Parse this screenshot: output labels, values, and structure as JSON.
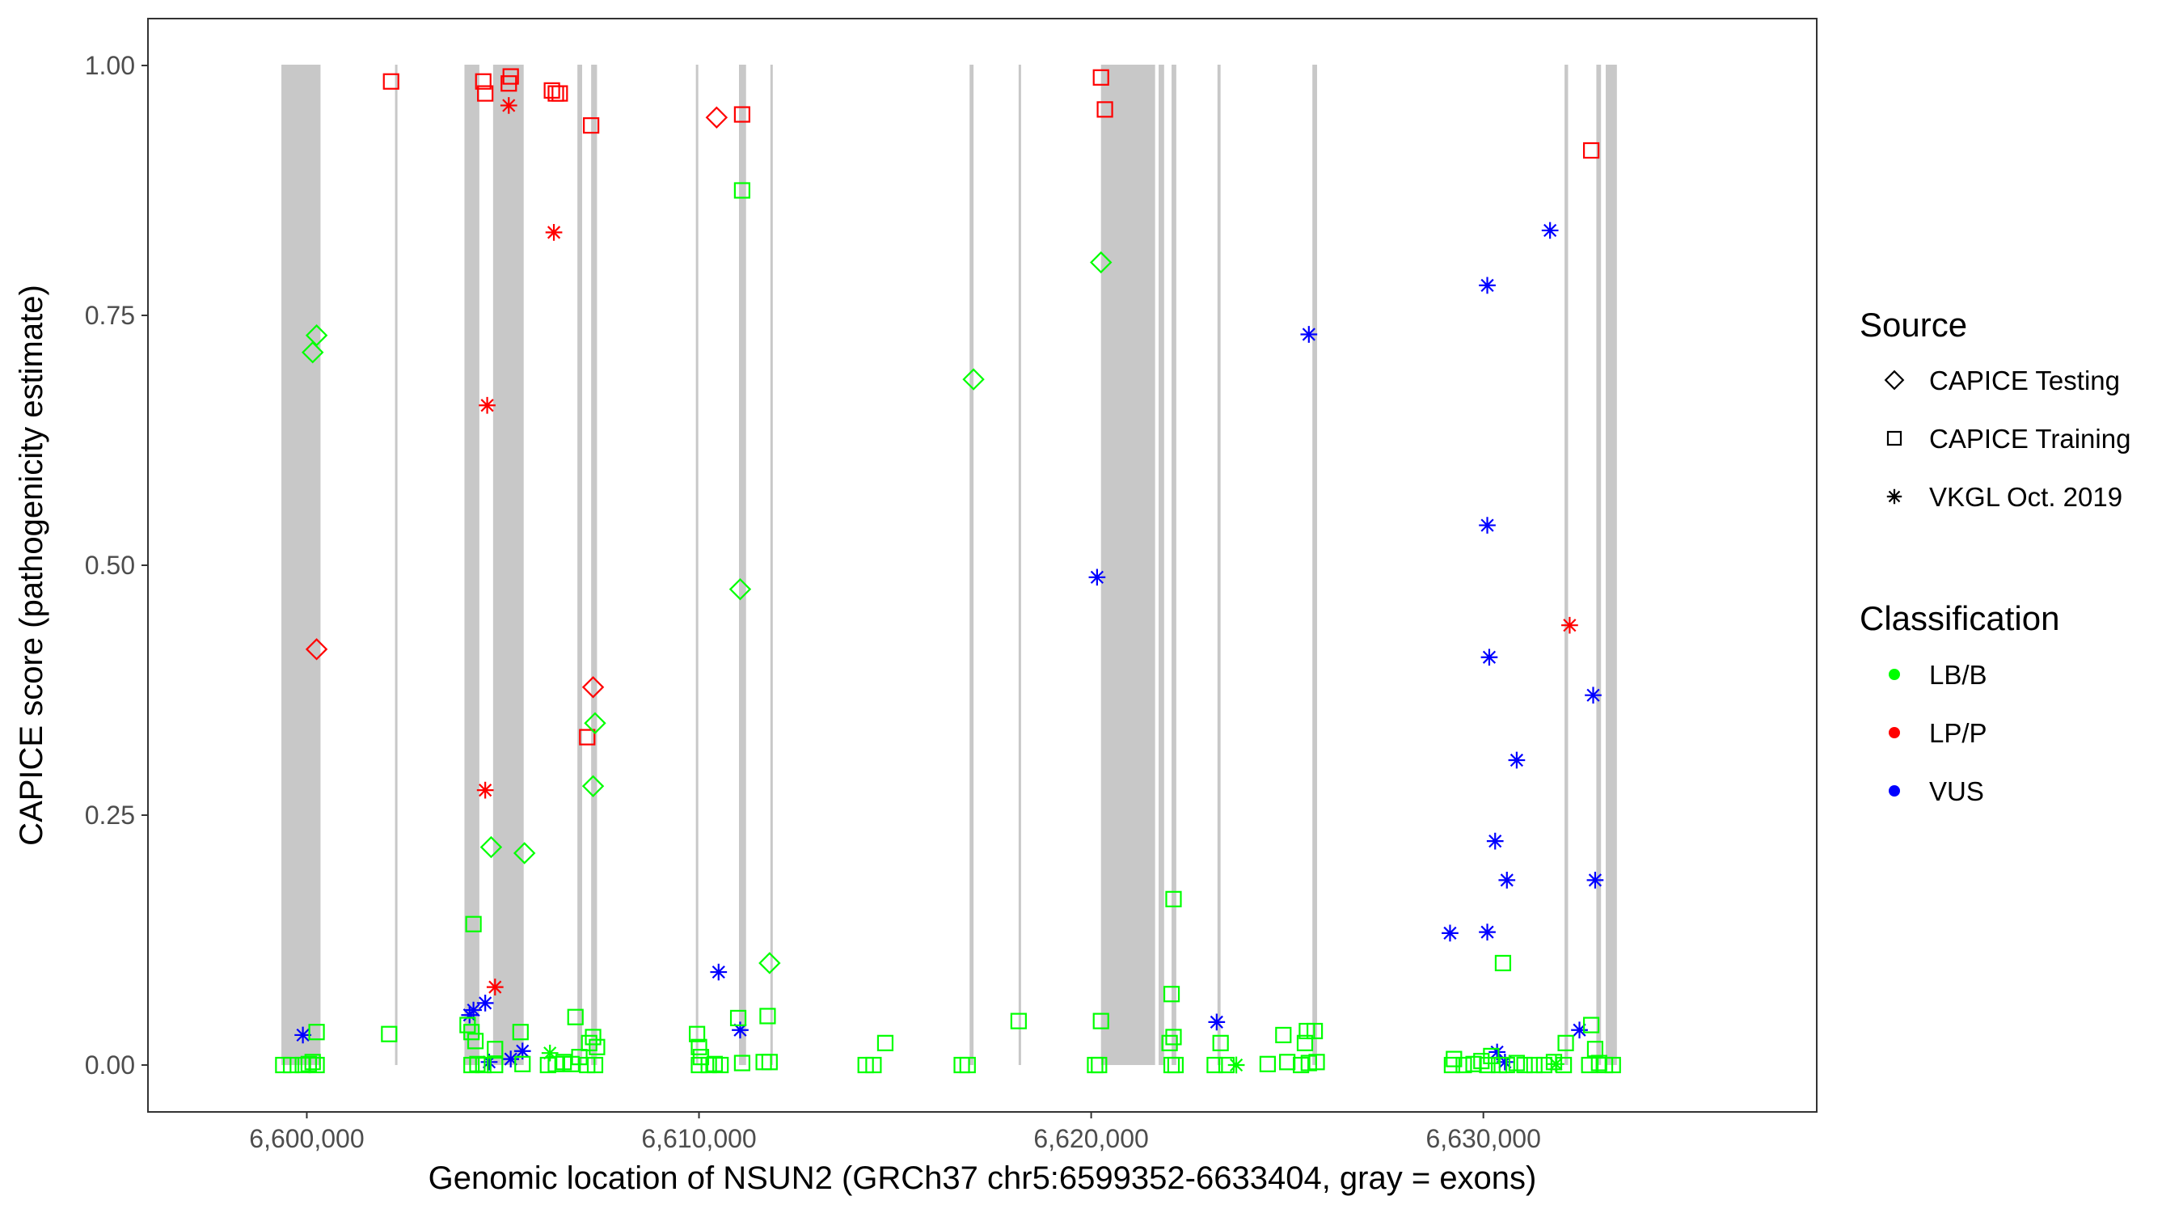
{
  "chart_data": {
    "type": "scatter",
    "xlabel": "Genomic location of NSUN2 (GRCh37 chr5:6599352-6633404, gray = exons)",
    "ylabel": "CAPICE score (pathogenicity estimate)",
    "xlim": [
      6595950,
      6638500
    ],
    "ylim": [
      -0.0469,
      1.0469
    ],
    "x_ticks": [
      6600000,
      6610000,
      6620000,
      6630000
    ],
    "x_tick_labels": [
      "6,600,000",
      "6,610,000",
      "6,620,000",
      "6,630,000"
    ],
    "y_ticks": [
      0,
      0.25,
      0.5,
      0.75,
      1
    ],
    "y_tick_labels": [
      "0.00",
      "0.25",
      "0.50",
      "0.75",
      "1.00"
    ],
    "grid": false,
    "exons": [
      [
        6599352,
        6600350
      ],
      [
        6602250,
        6602280
      ],
      [
        6604020,
        6604400
      ],
      [
        6604750,
        6605530
      ],
      [
        6606900,
        6607020
      ],
      [
        6607250,
        6607400
      ],
      [
        6609920,
        6609980
      ],
      [
        6611020,
        6611200
      ],
      [
        6611820,
        6611880
      ],
      [
        6616900,
        6617000
      ],
      [
        6618150,
        6618180
      ],
      [
        6620250,
        6621630
      ],
      [
        6621720,
        6621860
      ],
      [
        6622050,
        6622170
      ],
      [
        6623220,
        6623300
      ],
      [
        6625640,
        6625760
      ],
      [
        6632070,
        6632160
      ],
      [
        6632880,
        6633000
      ],
      [
        6633120,
        6633404
      ]
    ],
    "legend": {
      "position": "right",
      "source_title": "Source",
      "source_entries": [
        {
          "label": "CAPICE Testing",
          "shape": "diamond"
        },
        {
          "label": "CAPICE Training",
          "shape": "square"
        },
        {
          "label": "VKGL Oct. 2019",
          "shape": "asterisk"
        }
      ],
      "class_title": "Classification",
      "class_entries": [
        {
          "label": "LB/B",
          "color": "#00ff00"
        },
        {
          "label": "LP/P",
          "color": "#ff0000"
        },
        {
          "label": "VUS",
          "color": "#0000ff"
        }
      ]
    },
    "series": [
      {
        "name": "LP/P",
        "color": "#ff0000",
        "points": [
          {
            "x": 6602150,
            "y": 0.984,
            "shape": "square"
          },
          {
            "x": 6604500,
            "y": 0.984,
            "shape": "square"
          },
          {
            "x": 6604550,
            "y": 0.972,
            "shape": "square"
          },
          {
            "x": 6605150,
            "y": 0.982,
            "shape": "square"
          },
          {
            "x": 6605200,
            "y": 0.989,
            "shape": "square"
          },
          {
            "x": 6605150,
            "y": 0.96,
            "shape": "asterisk"
          },
          {
            "x": 6606250,
            "y": 0.975,
            "shape": "square"
          },
          {
            "x": 6606350,
            "y": 0.972,
            "shape": "square"
          },
          {
            "x": 6606450,
            "y": 0.972,
            "shape": "square"
          },
          {
            "x": 6607250,
            "y": 0.94,
            "shape": "square"
          },
          {
            "x": 6606300,
            "y": 0.833,
            "shape": "asterisk"
          },
          {
            "x": 6604600,
            "y": 0.66,
            "shape": "asterisk"
          },
          {
            "x": 6604550,
            "y": 0.275,
            "shape": "asterisk"
          },
          {
            "x": 6604800,
            "y": 0.078,
            "shape": "asterisk"
          },
          {
            "x": 6600250,
            "y": 0.416,
            "shape": "diamond"
          },
          {
            "x": 6607300,
            "y": 0.378,
            "shape": "diamond"
          },
          {
            "x": 6607150,
            "y": 0.328,
            "shape": "square"
          },
          {
            "x": 6610450,
            "y": 0.948,
            "shape": "diamond"
          },
          {
            "x": 6611100,
            "y": 0.951,
            "shape": "square"
          },
          {
            "x": 6620250,
            "y": 0.988,
            "shape": "square"
          },
          {
            "x": 6620350,
            "y": 0.956,
            "shape": "square"
          },
          {
            "x": 6632750,
            "y": 0.915,
            "shape": "square"
          },
          {
            "x": 6632200,
            "y": 0.44,
            "shape": "asterisk"
          }
        ]
      },
      {
        "name": "VUS",
        "color": "#0000ff",
        "points": [
          {
            "x": 6599900,
            "y": 0.03,
            "shape": "asterisk"
          },
          {
            "x": 6604150,
            "y": 0.05,
            "shape": "asterisk"
          },
          {
            "x": 6604250,
            "y": 0.055,
            "shape": "asterisk"
          },
          {
            "x": 6604550,
            "y": 0.062,
            "shape": "asterisk"
          },
          {
            "x": 6604650,
            "y": 0.003,
            "shape": "asterisk"
          },
          {
            "x": 6605200,
            "y": 0.006,
            "shape": "asterisk"
          },
          {
            "x": 6605500,
            "y": 0.014,
            "shape": "asterisk"
          },
          {
            "x": 6610500,
            "y": 0.093,
            "shape": "asterisk"
          },
          {
            "x": 6611050,
            "y": 0.035,
            "shape": "asterisk"
          },
          {
            "x": 6620150,
            "y": 0.488,
            "shape": "asterisk"
          },
          {
            "x": 6623200,
            "y": 0.043,
            "shape": "asterisk"
          },
          {
            "x": 6625550,
            "y": 0.731,
            "shape": "asterisk"
          },
          {
            "x": 6629150,
            "y": 0.132,
            "shape": "asterisk"
          },
          {
            "x": 6630100,
            "y": 0.78,
            "shape": "asterisk"
          },
          {
            "x": 6630100,
            "y": 0.54,
            "shape": "asterisk"
          },
          {
            "x": 6630150,
            "y": 0.408,
            "shape": "asterisk"
          },
          {
            "x": 6630100,
            "y": 0.133,
            "shape": "asterisk"
          },
          {
            "x": 6630300,
            "y": 0.224,
            "shape": "asterisk"
          },
          {
            "x": 6630350,
            "y": 0.013,
            "shape": "asterisk"
          },
          {
            "x": 6630550,
            "y": 0.003,
            "shape": "asterisk"
          },
          {
            "x": 6630600,
            "y": 0.185,
            "shape": "asterisk"
          },
          {
            "x": 6630850,
            "y": 0.305,
            "shape": "asterisk"
          },
          {
            "x": 6631700,
            "y": 0.835,
            "shape": "asterisk"
          },
          {
            "x": 6632450,
            "y": 0.035,
            "shape": "asterisk"
          },
          {
            "x": 6632800,
            "y": 0.37,
            "shape": "asterisk"
          },
          {
            "x": 6632850,
            "y": 0.185,
            "shape": "asterisk"
          }
        ]
      },
      {
        "name": "LB/B",
        "color": "#00ff00",
        "points": [
          {
            "x": 6600150,
            "y": 0.713,
            "shape": "diamond"
          },
          {
            "x": 6600250,
            "y": 0.73,
            "shape": "diamond"
          },
          {
            "x": 6600250,
            "y": 0.033,
            "shape": "square"
          },
          {
            "x": 6599400,
            "y": 0.0,
            "shape": "square"
          },
          {
            "x": 6599600,
            "y": 0.0,
            "shape": "square"
          },
          {
            "x": 6599900,
            "y": 0.0,
            "shape": "square"
          },
          {
            "x": 6600050,
            "y": 0.001,
            "shape": "square"
          },
          {
            "x": 6600150,
            "y": 0.003,
            "shape": "square"
          },
          {
            "x": 6600250,
            "y": 0.0,
            "shape": "square"
          },
          {
            "x": 6602100,
            "y": 0.031,
            "shape": "square"
          },
          {
            "x": 6604250,
            "y": 0.141,
            "shape": "square"
          },
          {
            "x": 6604100,
            "y": 0.04,
            "shape": "square"
          },
          {
            "x": 6604200,
            "y": 0.033,
            "shape": "square"
          },
          {
            "x": 6604300,
            "y": 0.024,
            "shape": "square"
          },
          {
            "x": 6604700,
            "y": 0.218,
            "shape": "diamond"
          },
          {
            "x": 6605550,
            "y": 0.212,
            "shape": "diamond"
          },
          {
            "x": 6605450,
            "y": 0.033,
            "shape": "square"
          },
          {
            "x": 6604800,
            "y": 0.016,
            "shape": "square"
          },
          {
            "x": 6604200,
            "y": 0.0,
            "shape": "square"
          },
          {
            "x": 6604350,
            "y": 0.001,
            "shape": "square"
          },
          {
            "x": 6604500,
            "y": 0.0,
            "shape": "square"
          },
          {
            "x": 6604800,
            "y": 0.0,
            "shape": "square"
          },
          {
            "x": 6605500,
            "y": 0.001,
            "shape": "square"
          },
          {
            "x": 6606200,
            "y": 0.012,
            "shape": "asterisk"
          },
          {
            "x": 6606150,
            "y": 0.0,
            "shape": "square"
          },
          {
            "x": 6606350,
            "y": 0.001,
            "shape": "square"
          },
          {
            "x": 6606550,
            "y": 0.003,
            "shape": "square"
          },
          {
            "x": 6606750,
            "y": 0.001,
            "shape": "square"
          },
          {
            "x": 6606950,
            "y": 0.008,
            "shape": "square"
          },
          {
            "x": 6606850,
            "y": 0.048,
            "shape": "square"
          },
          {
            "x": 6607200,
            "y": 0.022,
            "shape": "square"
          },
          {
            "x": 6607300,
            "y": 0.028,
            "shape": "square"
          },
          {
            "x": 6607400,
            "y": 0.018,
            "shape": "square"
          },
          {
            "x": 6607150,
            "y": 0.0,
            "shape": "square"
          },
          {
            "x": 6607350,
            "y": 0.0,
            "shape": "square"
          },
          {
            "x": 6607350,
            "y": 0.342,
            "shape": "diamond"
          },
          {
            "x": 6607300,
            "y": 0.279,
            "shape": "diamond"
          },
          {
            "x": 6611100,
            "y": 0.875,
            "shape": "square"
          },
          {
            "x": 6611050,
            "y": 0.476,
            "shape": "diamond"
          },
          {
            "x": 6611800,
            "y": 0.102,
            "shape": "diamond"
          },
          {
            "x": 6609950,
            "y": 0.031,
            "shape": "square"
          },
          {
            "x": 6610000,
            "y": 0.018,
            "shape": "square"
          },
          {
            "x": 6610050,
            "y": 0.008,
            "shape": "square"
          },
          {
            "x": 6610000,
            "y": 0.0,
            "shape": "square"
          },
          {
            "x": 6610250,
            "y": 0.0,
            "shape": "square"
          },
          {
            "x": 6610400,
            "y": 0.001,
            "shape": "square"
          },
          {
            "x": 6610550,
            "y": 0.0,
            "shape": "square"
          },
          {
            "x": 6611000,
            "y": 0.047,
            "shape": "square"
          },
          {
            "x": 6611100,
            "y": 0.002,
            "shape": "square"
          },
          {
            "x": 6611750,
            "y": 0.049,
            "shape": "square"
          },
          {
            "x": 6611650,
            "y": 0.003,
            "shape": "square"
          },
          {
            "x": 6611800,
            "y": 0.003,
            "shape": "square"
          },
          {
            "x": 6614250,
            "y": 0.0,
            "shape": "square"
          },
          {
            "x": 6614450,
            "y": 0.0,
            "shape": "square"
          },
          {
            "x": 6614750,
            "y": 0.022,
            "shape": "square"
          },
          {
            "x": 6616700,
            "y": 0.0,
            "shape": "square"
          },
          {
            "x": 6616850,
            "y": 0.0,
            "shape": "square"
          },
          {
            "x": 6617000,
            "y": 0.686,
            "shape": "diamond"
          },
          {
            "x": 6618150,
            "y": 0.044,
            "shape": "square"
          },
          {
            "x": 6620250,
            "y": 0.803,
            "shape": "diamond"
          },
          {
            "x": 6620250,
            "y": 0.044,
            "shape": "square"
          },
          {
            "x": 6620100,
            "y": 0.0,
            "shape": "square"
          },
          {
            "x": 6620200,
            "y": 0.0,
            "shape": "square"
          },
          {
            "x": 6622100,
            "y": 0.166,
            "shape": "square"
          },
          {
            "x": 6622050,
            "y": 0.071,
            "shape": "square"
          },
          {
            "x": 6622100,
            "y": 0.028,
            "shape": "square"
          },
          {
            "x": 6622000,
            "y": 0.022,
            "shape": "square"
          },
          {
            "x": 6622050,
            "y": 0.0,
            "shape": "square"
          },
          {
            "x": 6622150,
            "y": 0.0,
            "shape": "square"
          },
          {
            "x": 6623300,
            "y": 0.022,
            "shape": "square"
          },
          {
            "x": 6623150,
            "y": 0.0,
            "shape": "square"
          },
          {
            "x": 6623450,
            "y": 0.0,
            "shape": "square"
          },
          {
            "x": 6623700,
            "y": 0.0,
            "shape": "asterisk"
          },
          {
            "x": 6624500,
            "y": 0.001,
            "shape": "square"
          },
          {
            "x": 6624900,
            "y": 0.03,
            "shape": "square"
          },
          {
            "x": 6625000,
            "y": 0.003,
            "shape": "square"
          },
          {
            "x": 6625450,
            "y": 0.022,
            "shape": "square"
          },
          {
            "x": 6625500,
            "y": 0.034,
            "shape": "square"
          },
          {
            "x": 6625700,
            "y": 0.034,
            "shape": "square"
          },
          {
            "x": 6625350,
            "y": 0.0,
            "shape": "square"
          },
          {
            "x": 6625550,
            "y": 0.002,
            "shape": "square"
          },
          {
            "x": 6625750,
            "y": 0.003,
            "shape": "square"
          },
          {
            "x": 6629200,
            "y": 0.0,
            "shape": "square"
          },
          {
            "x": 6629250,
            "y": 0.006,
            "shape": "square"
          },
          {
            "x": 6629500,
            "y": 0.0,
            "shape": "square"
          },
          {
            "x": 6629750,
            "y": 0.001,
            "shape": "square"
          },
          {
            "x": 6629950,
            "y": 0.004,
            "shape": "square"
          },
          {
            "x": 6630100,
            "y": 0.0,
            "shape": "square"
          },
          {
            "x": 6630200,
            "y": 0.009,
            "shape": "square"
          },
          {
            "x": 6630400,
            "y": 0.0,
            "shape": "square"
          },
          {
            "x": 6630500,
            "y": 0.102,
            "shape": "square"
          },
          {
            "x": 6630600,
            "y": 0.0,
            "shape": "square"
          },
          {
            "x": 6630850,
            "y": 0.002,
            "shape": "square"
          },
          {
            "x": 6631050,
            "y": 0.0,
            "shape": "square"
          },
          {
            "x": 6631300,
            "y": 0.0,
            "shape": "square"
          },
          {
            "x": 6631550,
            "y": 0.0,
            "shape": "square"
          },
          {
            "x": 6631800,
            "y": 0.003,
            "shape": "square"
          },
          {
            "x": 6632050,
            "y": 0.0,
            "shape": "square"
          },
          {
            "x": 6632100,
            "y": 0.022,
            "shape": "square"
          },
          {
            "x": 6631850,
            "y": 0.001,
            "shape": "asterisk"
          },
          {
            "x": 6632750,
            "y": 0.04,
            "shape": "square"
          },
          {
            "x": 6632850,
            "y": 0.016,
            "shape": "square"
          },
          {
            "x": 6632700,
            "y": 0.0,
            "shape": "square"
          },
          {
            "x": 6632950,
            "y": 0.002,
            "shape": "square"
          },
          {
            "x": 6633100,
            "y": 0.0,
            "shape": "square"
          },
          {
            "x": 6633300,
            "y": 0.0,
            "shape": "square"
          }
        ]
      }
    ]
  }
}
